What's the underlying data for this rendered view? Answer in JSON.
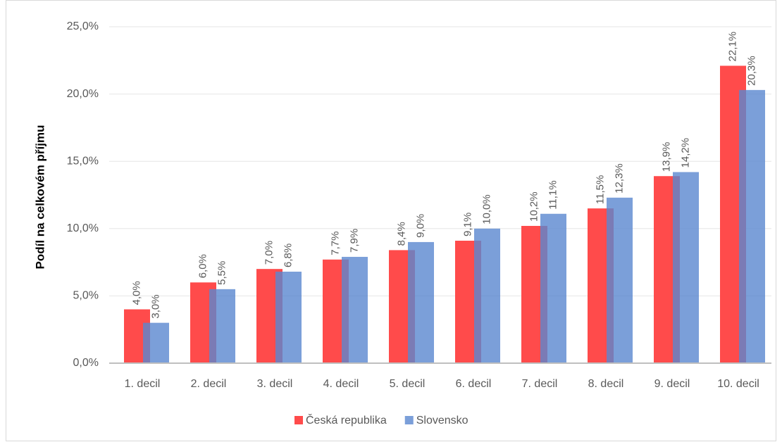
{
  "chart_data": {
    "type": "bar",
    "ylabel": "Podíl na celkovém příjmu",
    "categories": [
      "1. decil",
      "2. decil",
      "3. decil",
      "4. decil",
      "5. decil",
      "6. decil",
      "7. decil",
      "8. decil",
      "9. decil",
      "10. decil"
    ],
    "series": [
      {
        "name": "Česká republika",
        "color": "#ff4b4b",
        "values": [
          4.0,
          6.0,
          7.0,
          7.7,
          8.4,
          9.1,
          10.2,
          11.5,
          13.9,
          22.1
        ],
        "value_labels": [
          "4,0%",
          "6,0%",
          "7,0%",
          "7,7%",
          "8,4%",
          "9,1%",
          "10,2%",
          "11,5%",
          "13,9%",
          "22,1%"
        ]
      },
      {
        "name": "Slovensko",
        "color": "#5a87cf",
        "values": [
          3.0,
          5.5,
          6.8,
          7.9,
          9.0,
          10.0,
          11.1,
          12.3,
          14.2,
          20.3
        ],
        "value_labels": [
          "3,0%",
          "5,5%",
          "6,8%",
          "7,9%",
          "9,0%",
          "10,0%",
          "11,1%",
          "12,3%",
          "14,2%",
          "20,3%"
        ]
      }
    ],
    "ylim": [
      0,
      25
    ],
    "yticks": [
      {
        "value": 0,
        "label": "0,0%"
      },
      {
        "value": 5,
        "label": "5,0%"
      },
      {
        "value": 10,
        "label": "10,0%"
      },
      {
        "value": 15,
        "label": "15,0%"
      },
      {
        "value": 20,
        "label": "20,0%"
      },
      {
        "value": 25,
        "label": "25,0%"
      }
    ],
    "grid": true,
    "legend": "bottom"
  }
}
